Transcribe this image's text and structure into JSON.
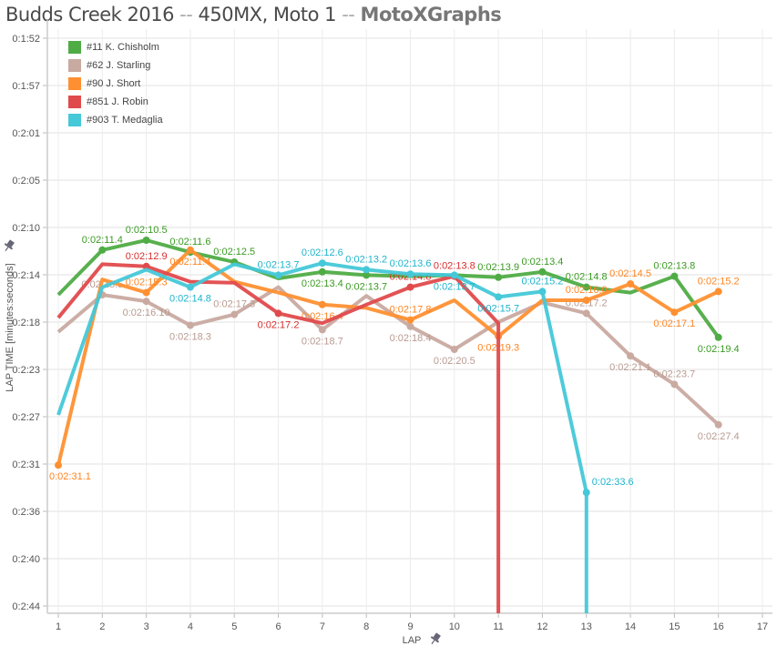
{
  "title": {
    "main": "Budds Creek 2016",
    "sep1": "--",
    "sub": "450MX, Moto 1",
    "sep2": "--",
    "brand": "MotoXGraphs"
  },
  "chart_data": {
    "type": "line",
    "xlabel": "LAP",
    "ylabel": "LAP TIME [minutes:seconds]",
    "x_ticks": [
      "1",
      "2",
      "3",
      "4",
      "5",
      "6",
      "7",
      "8",
      "9",
      "10",
      "11",
      "12",
      "13",
      "14",
      "15",
      "16",
      "17"
    ],
    "xlim": [
      1,
      17
    ],
    "y_ticks": [
      "0:1:52",
      "0:1:57",
      "0:2:01",
      "0:2:05",
      "0:2:10",
      "0:2:14",
      "0:2:18",
      "0:2:23",
      "0:2:27",
      "0:2:31",
      "0:2:36",
      "0:2:40",
      "0:2:44"
    ],
    "ylim": [
      "0:1:52",
      "0:2:44"
    ],
    "y_reversed": false,
    "grid": true,
    "legend_placement": "top-left",
    "series": [
      {
        "name": "#11 K. Chisholm",
        "color": "#4fac45",
        "label_color": "#3a9a22",
        "points": [
          [
            1,
            "0:02:15.5",
            null
          ],
          [
            2,
            "0:02:11.4",
            "0:02:11.4"
          ],
          [
            3,
            "0:02:10.5",
            "0:02:10.5"
          ],
          [
            4,
            "0:02:11.6",
            "0:02:11.6"
          ],
          [
            5,
            "0:02:12.5",
            "0:02:12.5"
          ],
          [
            6,
            "0:02:14.0",
            null
          ],
          [
            7,
            "0:02:13.4",
            "0:02:13.4"
          ],
          [
            8,
            "0:02:13.7",
            "0:02:13.7"
          ],
          [
            9,
            "0:02:13.8",
            null
          ],
          [
            10,
            "0:02:13.7",
            null
          ],
          [
            11,
            "0:02:13.9",
            "0:02:13.9"
          ],
          [
            12,
            "0:02:13.4",
            "0:02:13.4"
          ],
          [
            13,
            "0:02:14.8",
            "0:02:14.8"
          ],
          [
            14,
            "0:02:15.3",
            null
          ],
          [
            15,
            "0:02:13.8",
            "0:02:13.8"
          ],
          [
            16,
            "0:02:19.4",
            "0:02:19.4"
          ]
        ]
      },
      {
        "name": "#62 J. Starling",
        "color": "#c9aaa1",
        "label_color": "#b89a90",
        "points": [
          [
            1,
            "0:02:18.9",
            null
          ],
          [
            2,
            "0:02:15.5",
            "0:02:15.5"
          ],
          [
            3,
            "0:02:16.10",
            "0:02:16.10"
          ],
          [
            4,
            "0:02:18.3",
            "0:02:18.3"
          ],
          [
            5,
            "0:02:17.3",
            "0:02:17.3"
          ],
          [
            6,
            "0:02:14.8",
            null
          ],
          [
            7,
            "0:02:18.7",
            "0:02:18.7"
          ],
          [
            8,
            "0:02:15.6",
            null
          ],
          [
            9,
            "0:02:18.4",
            "0:02:18.4"
          ],
          [
            10,
            "0:02:20.5",
            "0:02:20.5"
          ],
          [
            11,
            "0:02:18.0",
            null
          ],
          [
            12,
            "0:02:16.2",
            null
          ],
          [
            13,
            "0:02:17.2",
            "0:02:17.2"
          ],
          [
            14,
            "0:02:21.1",
            "0:02:21.1"
          ],
          [
            15,
            "0:02:23.7",
            "0:02:23.7"
          ],
          [
            16,
            "0:02:27.4",
            "0:02:27.4"
          ]
        ]
      },
      {
        "name": "#90 J. Short",
        "color": "#ff9032",
        "label_color": "#ff8420",
        "points": [
          [
            1,
            "0:02:31.1",
            "0:02:31.1"
          ],
          [
            2,
            "0:02:14.1",
            null
          ],
          [
            3,
            "0:02:15.3",
            "0:02:15.3"
          ],
          [
            4,
            "0:02:11.4",
            "0:02:11.4"
          ],
          [
            5,
            "0:02:14.3",
            null
          ],
          [
            6,
            "0:02:15.3",
            null
          ],
          [
            7,
            "0:02:16.4",
            "0:02:16.4"
          ],
          [
            8,
            "0:02:16.7",
            null
          ],
          [
            9,
            "0:02:17.8",
            "0:02:17.8"
          ],
          [
            10,
            "0:02:16.0",
            null
          ],
          [
            11,
            "0:02:19.3",
            "0:02:19.3"
          ],
          [
            12,
            "0:02:16.0",
            null
          ],
          [
            13,
            "0:02:16.0",
            "0:02:16.0"
          ],
          [
            14,
            "0:02:14.5",
            "0:02:14.5"
          ],
          [
            15,
            "0:02:17.1",
            "0:02:17.1"
          ],
          [
            16,
            "0:02:15.2",
            "0:02:15.2"
          ]
        ]
      },
      {
        "name": "#851 J. Robin",
        "color": "#e04a4c",
        "label_color": "#d92c2c",
        "dnf_after_lap": 11,
        "points": [
          [
            1,
            "0:02:17.6",
            null
          ],
          [
            2,
            "0:02:12.7",
            null
          ],
          [
            3,
            "0:02:12.9",
            "0:02:12.9"
          ],
          [
            4,
            "0:02:14.3",
            null
          ],
          [
            5,
            "0:02:14.4",
            null
          ],
          [
            6,
            "0:02:17.2",
            "0:02:17.2"
          ],
          [
            7,
            "0:02:18.1",
            null
          ],
          [
            8,
            "0:02:16.4",
            null
          ],
          [
            9,
            "0:02:14.8",
            "0:02:14.8"
          ],
          [
            10,
            "0:02:13.8",
            "0:02:13.8"
          ],
          [
            11,
            "0:02:18.1",
            null
          ]
        ]
      },
      {
        "name": "#903 T. Medaglia",
        "color": "#45c8d8",
        "label_color": "#1cb4cc",
        "dnf_after_lap": 13,
        "points": [
          [
            1,
            "0:02:26.5",
            null
          ],
          [
            2,
            "0:02:14.8",
            null
          ],
          [
            3,
            "0:02:13.2",
            null
          ],
          [
            4,
            "0:02:14.8",
            "0:02:14.8"
          ],
          [
            5,
            "0:02:12.7",
            null
          ],
          [
            6,
            "0:02:13.7",
            "0:02:13.7"
          ],
          [
            7,
            "0:02:12.6",
            "0:02:12.6"
          ],
          [
            8,
            "0:02:13.2",
            "0:02:13.2"
          ],
          [
            9,
            "0:02:13.6",
            "0:02:13.6"
          ],
          [
            10,
            "0:02:13.7",
            "0:02:13.7"
          ],
          [
            11,
            "0:02:15.7",
            "0:02:15.7"
          ],
          [
            12,
            "0:02:15.2",
            "0:02:15.2"
          ],
          [
            13,
            "0:02:33.6",
            "0:02:33.6"
          ]
        ]
      }
    ]
  },
  "icons": {
    "axis_pin": "pin-icon"
  }
}
